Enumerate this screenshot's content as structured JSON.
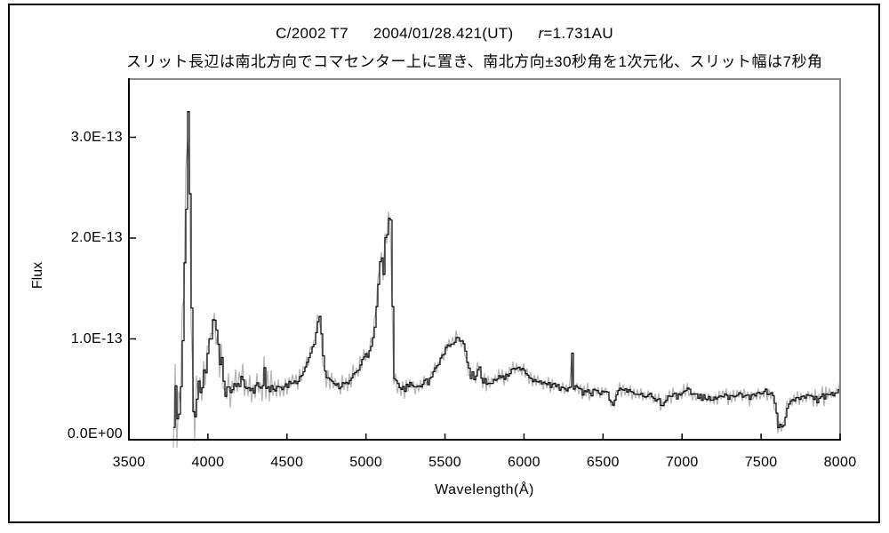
{
  "header": {
    "title_object": "C/2002 T7",
    "title_date": "2004/01/28.421(UT)",
    "title_r_italic": "r",
    "title_r_rest": "=1.731AU",
    "subtitle": "スリット長辺は南北方向でコマセンター上に置き、南北方向±30秒角を1次元化、スリット幅は7秒角"
  },
  "chart_data": {
    "type": "line",
    "title": "C/2002 T7 2004/01/28.421(UT) r=1.731AU",
    "xlabel": "Wavelength(Å)",
    "ylabel": "Flux",
    "xlim": [
      3500,
      8000
    ],
    "ylim_flux_e13": [
      0,
      3.58
    ],
    "x_ticks": [
      3500,
      4000,
      4500,
      5000,
      5500,
      6000,
      6500,
      7000,
      7500,
      8000
    ],
    "y_ticks": [
      {
        "value_e13": 0,
        "label": "0.0E+00"
      },
      {
        "value_e13": 1,
        "label": "1.0E-13"
      },
      {
        "value_e13": 2,
        "label": "2.0E-13"
      },
      {
        "value_e13": 3,
        "label": "3.0E-13"
      }
    ],
    "grid": false,
    "legend": "none",
    "colors": {
      "spectrum": "#000000",
      "noise_envelope": "#b4b4b4",
      "frame_shadow": "#8a8a8a",
      "axis": "#000000"
    },
    "series": [
      {
        "name": "comet spectrum (flux, units 1e-13)",
        "color": "#000000"
      },
      {
        "name": "noise / error envelope",
        "color": "#b4b4b4"
      }
    ],
    "points": [
      [
        3781,
        0.05
      ],
      [
        3783,
        0.78
      ],
      [
        3786,
        0.32
      ],
      [
        3790,
        0.88
      ],
      [
        3794,
        0.38
      ],
      [
        3798,
        0.72
      ],
      [
        3803,
        0.12
      ],
      [
        3808,
        0.66
      ],
      [
        3813,
        0.42
      ],
      [
        3818,
        0.06
      ],
      [
        3823,
        0.38
      ],
      [
        3828,
        0.62
      ],
      [
        3833,
        0.75
      ],
      [
        3838,
        1.05
      ],
      [
        3843,
        1.62
      ],
      [
        3847,
        1.92
      ],
      [
        3851,
        1.55
      ],
      [
        3855,
        1.98
      ],
      [
        3859,
        2.45
      ],
      [
        3862,
        2.05
      ],
      [
        3866,
        2.85
      ],
      [
        3870,
        3.1
      ],
      [
        3873,
        3.4
      ],
      [
        3877,
        3.35
      ],
      [
        3881,
        2.55
      ],
      [
        3884,
        2.25
      ],
      [
        3887,
        2.3
      ],
      [
        3890,
        1.5
      ],
      [
        3893,
        1.42
      ],
      [
        3896,
        0.85
      ],
      [
        3900,
        0.52
      ],
      [
        3904,
        0.32
      ],
      [
        3908,
        0.15
      ],
      [
        3913,
        0.1
      ],
      [
        3918,
        0.28
      ],
      [
        3922,
        0.18
      ],
      [
        3927,
        0.38
      ],
      [
        3932,
        0.32
      ],
      [
        3937,
        0.55
      ],
      [
        3942,
        0.62
      ],
      [
        3947,
        0.45
      ],
      [
        3952,
        0.52
      ],
      [
        3957,
        0.48
      ],
      [
        3963,
        0.56
      ],
      [
        3970,
        0.64
      ],
      [
        3978,
        0.72
      ],
      [
        3985,
        0.62
      ],
      [
        3992,
        0.78
      ],
      [
        4000,
        0.92
      ],
      [
        4008,
        1.02
      ],
      [
        4015,
        0.96
      ],
      [
        4022,
        1.12
      ],
      [
        4030,
        1.2
      ],
      [
        4038,
        1.22
      ],
      [
        4045,
        1.15
      ],
      [
        4052,
        1.05
      ],
      [
        4060,
        0.95
      ],
      [
        4068,
        0.88
      ],
      [
        4076,
        0.72
      ],
      [
        4084,
        0.82
      ],
      [
        4092,
        0.62
      ],
      [
        4100,
        0.55
      ],
      [
        4108,
        0.45
      ],
      [
        4116,
        0.63
      ],
      [
        4124,
        0.4
      ],
      [
        4132,
        0.56
      ],
      [
        4140,
        0.42
      ],
      [
        4148,
        0.6
      ],
      [
        4156,
        0.38
      ],
      [
        4164,
        0.55
      ],
      [
        4172,
        0.5
      ],
      [
        4182,
        0.62
      ],
      [
        4192,
        0.46
      ],
      [
        4202,
        0.56
      ],
      [
        4214,
        0.66
      ],
      [
        4226,
        0.5
      ],
      [
        4238,
        0.48
      ],
      [
        4250,
        0.56
      ],
      [
        4262,
        0.5
      ],
      [
        4274,
        0.52
      ],
      [
        4286,
        0.48
      ],
      [
        4298,
        0.52
      ],
      [
        4310,
        0.56
      ],
      [
        4322,
        0.5
      ],
      [
        4334,
        0.52
      ],
      [
        4346,
        0.56
      ],
      [
        4353,
        0.78
      ],
      [
        4360,
        0.6
      ],
      [
        4368,
        0.52
      ],
      [
        4378,
        0.54
      ],
      [
        4390,
        0.48
      ],
      [
        4402,
        0.52
      ],
      [
        4414,
        0.46
      ],
      [
        4426,
        0.52
      ],
      [
        4438,
        0.5
      ],
      [
        4452,
        0.54
      ],
      [
        4466,
        0.5
      ],
      [
        4480,
        0.55
      ],
      [
        4495,
        0.52
      ],
      [
        4510,
        0.56
      ],
      [
        4525,
        0.54
      ],
      [
        4540,
        0.58
      ],
      [
        4555,
        0.56
      ],
      [
        4570,
        0.6
      ],
      [
        4585,
        0.64
      ],
      [
        4600,
        0.68
      ],
      [
        4615,
        0.72
      ],
      [
        4630,
        0.78
      ],
      [
        4645,
        0.86
      ],
      [
        4658,
        0.94
      ],
      [
        4666,
        0.9
      ],
      [
        4675,
        0.98
      ],
      [
        4685,
        1.08
      ],
      [
        4695,
        1.18
      ],
      [
        4702,
        1.24
      ],
      [
        4710,
        1.12
      ],
      [
        4718,
        0.98
      ],
      [
        4726,
        0.84
      ],
      [
        4734,
        0.72
      ],
      [
        4744,
        0.66
      ],
      [
        4754,
        0.6
      ],
      [
        4766,
        0.62
      ],
      [
        4778,
        0.54
      ],
      [
        4790,
        0.58
      ],
      [
        4802,
        0.52
      ],
      [
        4816,
        0.56
      ],
      [
        4830,
        0.52
      ],
      [
        4845,
        0.56
      ],
      [
        4860,
        0.53
      ],
      [
        4875,
        0.56
      ],
      [
        4890,
        0.58
      ],
      [
        4905,
        0.62
      ],
      [
        4920,
        0.66
      ],
      [
        4935,
        0.64
      ],
      [
        4950,
        0.7
      ],
      [
        4965,
        0.76
      ],
      [
        4980,
        0.82
      ],
      [
        4995,
        0.86
      ],
      [
        5010,
        0.84
      ],
      [
        5025,
        0.9
      ],
      [
        5040,
        1.0
      ],
      [
        5052,
        1.12
      ],
      [
        5064,
        1.32
      ],
      [
        5076,
        1.55
      ],
      [
        5086,
        1.76
      ],
      [
        5094,
        1.86
      ],
      [
        5102,
        1.72
      ],
      [
        5110,
        1.64
      ],
      [
        5118,
        1.96
      ],
      [
        5126,
        2.16
      ],
      [
        5132,
        2.02
      ],
      [
        5140,
        2.2
      ],
      [
        5148,
        2.12
      ],
      [
        5156,
        2.22
      ],
      [
        5162,
        1.9
      ],
      [
        5166,
        1.1
      ],
      [
        5170,
        0.65
      ],
      [
        5176,
        0.58
      ],
      [
        5184,
        0.62
      ],
      [
        5194,
        0.52
      ],
      [
        5206,
        0.56
      ],
      [
        5218,
        0.5
      ],
      [
        5230,
        0.54
      ],
      [
        5242,
        0.47
      ],
      [
        5254,
        0.53
      ],
      [
        5266,
        0.5
      ],
      [
        5278,
        0.56
      ],
      [
        5290,
        0.52
      ],
      [
        5304,
        0.54
      ],
      [
        5318,
        0.5
      ],
      [
        5332,
        0.56
      ],
      [
        5346,
        0.53
      ],
      [
        5360,
        0.56
      ],
      [
        5374,
        0.59
      ],
      [
        5388,
        0.56
      ],
      [
        5402,
        0.61
      ],
      [
        5416,
        0.64
      ],
      [
        5430,
        0.69
      ],
      [
        5444,
        0.73
      ],
      [
        5458,
        0.76
      ],
      [
        5472,
        0.81
      ],
      [
        5486,
        0.86
      ],
      [
        5500,
        0.89
      ],
      [
        5514,
        0.93
      ],
      [
        5528,
        0.9
      ],
      [
        5542,
        0.96
      ],
      [
        5556,
        0.93
      ],
      [
        5570,
        0.99
      ],
      [
        5584,
        1.01
      ],
      [
        5592,
        0.96
      ],
      [
        5600,
        1.02
      ],
      [
        5610,
        0.97
      ],
      [
        5620,
        0.93
      ],
      [
        5630,
        0.84
      ],
      [
        5640,
        0.76
      ],
      [
        5650,
        0.69
      ],
      [
        5660,
        0.63
      ],
      [
        5670,
        0.66
      ],
      [
        5680,
        0.59
      ],
      [
        5692,
        0.63
      ],
      [
        5704,
        0.69
      ],
      [
        5716,
        0.72
      ],
      [
        5728,
        0.63
      ],
      [
        5740,
        0.56
      ],
      [
        5752,
        0.61
      ],
      [
        5764,
        0.56
      ],
      [
        5778,
        0.59
      ],
      [
        5792,
        0.56
      ],
      [
        5806,
        0.61
      ],
      [
        5820,
        0.58
      ],
      [
        5834,
        0.62
      ],
      [
        5848,
        0.6
      ],
      [
        5862,
        0.63
      ],
      [
        5876,
        0.6
      ],
      [
        5890,
        0.66
      ],
      [
        5904,
        0.62
      ],
      [
        5918,
        0.68
      ],
      [
        5932,
        0.71
      ],
      [
        5946,
        0.68
      ],
      [
        5960,
        0.72
      ],
      [
        5974,
        0.7
      ],
      [
        5988,
        0.73
      ],
      [
        6002,
        0.69
      ],
      [
        6016,
        0.66
      ],
      [
        6030,
        0.62
      ],
      [
        6044,
        0.59
      ],
      [
        6058,
        0.56
      ],
      [
        6072,
        0.6
      ],
      [
        6086,
        0.56
      ],
      [
        6100,
        0.59
      ],
      [
        6114,
        0.55
      ],
      [
        6128,
        0.57
      ],
      [
        6142,
        0.53
      ],
      [
        6156,
        0.56
      ],
      [
        6170,
        0.52
      ],
      [
        6184,
        0.55
      ],
      [
        6198,
        0.51
      ],
      [
        6212,
        0.53
      ],
      [
        6226,
        0.5
      ],
      [
        6240,
        0.53
      ],
      [
        6254,
        0.49
      ],
      [
        6268,
        0.51
      ],
      [
        6282,
        0.52
      ],
      [
        6292,
        0.55
      ],
      [
        6298,
        0.68
      ],
      [
        6302,
        0.88
      ],
      [
        6306,
        0.62
      ],
      [
        6312,
        0.51
      ],
      [
        6320,
        0.57
      ],
      [
        6328,
        0.51
      ],
      [
        6340,
        0.49
      ],
      [
        6354,
        0.51
      ],
      [
        6368,
        0.46
      ],
      [
        6382,
        0.49
      ],
      [
        6396,
        0.46
      ],
      [
        6410,
        0.49
      ],
      [
        6424,
        0.45
      ],
      [
        6438,
        0.49
      ],
      [
        6452,
        0.46
      ],
      [
        6466,
        0.49
      ],
      [
        6480,
        0.46
      ],
      [
        6494,
        0.47
      ],
      [
        6508,
        0.45
      ],
      [
        6522,
        0.47
      ],
      [
        6536,
        0.42
      ],
      [
        6550,
        0.36
      ],
      [
        6560,
        0.32
      ],
      [
        6570,
        0.38
      ],
      [
        6582,
        0.44
      ],
      [
        6594,
        0.47
      ],
      [
        6606,
        0.5
      ],
      [
        6618,
        0.48
      ],
      [
        6632,
        0.5
      ],
      [
        6646,
        0.48
      ],
      [
        6660,
        0.5
      ],
      [
        6674,
        0.47
      ],
      [
        6688,
        0.49
      ],
      [
        6702,
        0.45
      ],
      [
        6716,
        0.47
      ],
      [
        6730,
        0.43
      ],
      [
        6744,
        0.46
      ],
      [
        6758,
        0.43
      ],
      [
        6772,
        0.45
      ],
      [
        6786,
        0.43
      ],
      [
        6800,
        0.44
      ],
      [
        6814,
        0.42
      ],
      [
        6828,
        0.4
      ],
      [
        6842,
        0.42
      ],
      [
        6856,
        0.38
      ],
      [
        6870,
        0.33
      ],
      [
        6884,
        0.36
      ],
      [
        6898,
        0.4
      ],
      [
        6912,
        0.43
      ],
      [
        6926,
        0.45
      ],
      [
        6940,
        0.43
      ],
      [
        6954,
        0.45
      ],
      [
        6968,
        0.42
      ],
      [
        6982,
        0.45
      ],
      [
        6996,
        0.47
      ],
      [
        7010,
        0.49
      ],
      [
        7024,
        0.46
      ],
      [
        7038,
        0.52
      ],
      [
        7052,
        0.48
      ],
      [
        7066,
        0.44
      ],
      [
        7080,
        0.46
      ],
      [
        7094,
        0.42
      ],
      [
        7108,
        0.45
      ],
      [
        7122,
        0.41
      ],
      [
        7136,
        0.44
      ],
      [
        7150,
        0.4
      ],
      [
        7164,
        0.42
      ],
      [
        7178,
        0.38
      ],
      [
        7192,
        0.42
      ],
      [
        7206,
        0.4
      ],
      [
        7220,
        0.44
      ],
      [
        7234,
        0.42
      ],
      [
        7248,
        0.45
      ],
      [
        7262,
        0.42
      ],
      [
        7276,
        0.44
      ],
      [
        7290,
        0.4
      ],
      [
        7304,
        0.44
      ],
      [
        7318,
        0.42
      ],
      [
        7332,
        0.46
      ],
      [
        7346,
        0.44
      ],
      [
        7360,
        0.46
      ],
      [
        7374,
        0.42
      ],
      [
        7388,
        0.45
      ],
      [
        7402,
        0.42
      ],
      [
        7416,
        0.44
      ],
      [
        7430,
        0.4
      ],
      [
        7444,
        0.44
      ],
      [
        7458,
        0.42
      ],
      [
        7472,
        0.46
      ],
      [
        7486,
        0.44
      ],
      [
        7500,
        0.48
      ],
      [
        7514,
        0.46
      ],
      [
        7528,
        0.5
      ],
      [
        7542,
        0.46
      ],
      [
        7554,
        0.48
      ],
      [
        7566,
        0.44
      ],
      [
        7578,
        0.4
      ],
      [
        7588,
        0.32
      ],
      [
        7598,
        0.22
      ],
      [
        7608,
        0.1
      ],
      [
        7616,
        0.13
      ],
      [
        7624,
        0.18
      ],
      [
        7632,
        0.12
      ],
      [
        7640,
        0.16
      ],
      [
        7650,
        0.22
      ],
      [
        7660,
        0.3
      ],
      [
        7672,
        0.36
      ],
      [
        7686,
        0.4
      ],
      [
        7700,
        0.43
      ],
      [
        7714,
        0.39
      ],
      [
        7728,
        0.43
      ],
      [
        7742,
        0.4
      ],
      [
        7756,
        0.44
      ],
      [
        7770,
        0.4
      ],
      [
        7784,
        0.45
      ],
      [
        7798,
        0.42
      ],
      [
        7812,
        0.46
      ],
      [
        7826,
        0.4
      ],
      [
        7840,
        0.44
      ],
      [
        7854,
        0.38
      ],
      [
        7868,
        0.42
      ],
      [
        7882,
        0.45
      ],
      [
        7896,
        0.4
      ],
      [
        7910,
        0.44
      ],
      [
        7924,
        0.42
      ],
      [
        7938,
        0.46
      ],
      [
        7952,
        0.44
      ],
      [
        7966,
        0.47
      ],
      [
        7980,
        0.44
      ],
      [
        7990,
        0.5
      ],
      [
        8000,
        0.57
      ]
    ]
  }
}
